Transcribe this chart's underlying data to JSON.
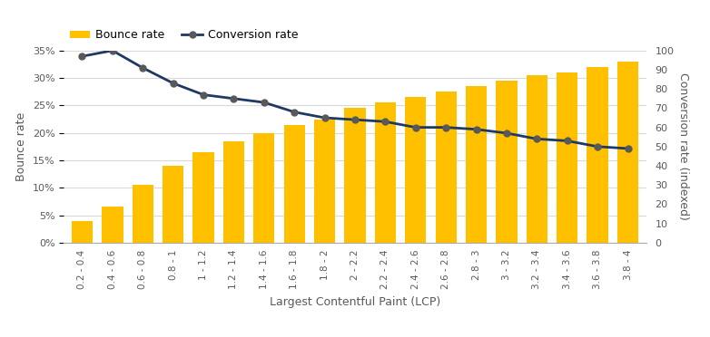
{
  "categories": [
    "0.2 - 0.4",
    "0.4 - 0.6",
    "0.6 - 0.8",
    "0.8 - 1",
    "1 - 1.2",
    "1.2 - 1.4",
    "1.4 - 1.6",
    "1.6 - 1.8",
    "1.8 - 2",
    "2 - 2.2",
    "2.2 - 2.4",
    "2.4 - 2.6",
    "2.6 - 2.8",
    "2.8 - 3",
    "3 - 3.2",
    "3.2 - 3.4",
    "3.4 - 3.6",
    "3.6 - 3.8",
    "3.8 - 4"
  ],
  "bounce_rate": [
    0.04,
    0.065,
    0.105,
    0.14,
    0.165,
    0.185,
    0.2,
    0.215,
    0.225,
    0.245,
    0.255,
    0.265,
    0.275,
    0.285,
    0.295,
    0.305,
    0.31,
    0.32,
    0.33
  ],
  "conversion_rate": [
    97,
    100,
    91,
    83,
    77,
    75,
    73,
    68,
    65,
    64,
    63,
    60,
    60,
    59,
    57,
    54,
    53,
    50,
    49
  ],
  "bar_color": "#FFC000",
  "line_color": "#1F3864",
  "marker_color": "#595959",
  "xlabel": "Largest Contentful Paint (LCP)",
  "ylabel_left": "Bounce rate",
  "ylabel_right": "Conversion rate (indexed)",
  "legend_bounce": "Bounce rate",
  "legend_conversion": "Conversion rate",
  "ylim_left": [
    0,
    0.35
  ],
  "ylim_right": [
    0,
    100
  ],
  "yticks_left": [
    0,
    0.05,
    0.1,
    0.15,
    0.2,
    0.25,
    0.3,
    0.35
  ],
  "yticks_right": [
    0,
    10,
    20,
    30,
    40,
    50,
    60,
    70,
    80,
    90,
    100
  ],
  "background_color": "#ffffff",
  "grid_color": "#d9d9d9",
  "tick_label_color": "#595959",
  "axis_label_color": "#595959"
}
